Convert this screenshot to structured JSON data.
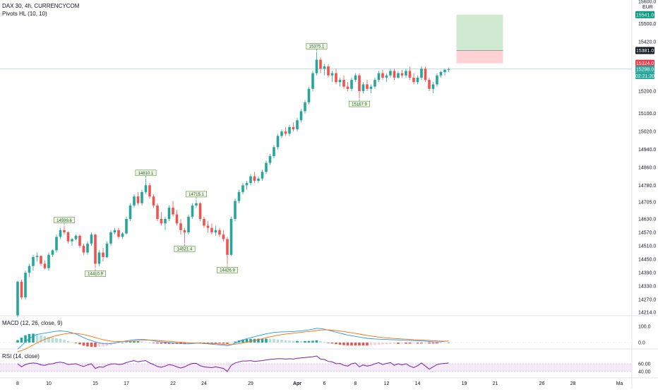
{
  "header": {
    "symbol_line": "DAX 30, 4h, CURRENCYCOM",
    "indicator_line": "Pivots HL (10, 10)"
  },
  "macd": {
    "label": "MACD (12, 26, close, 9)",
    "axis_ticks": [
      "100.0",
      "0.0"
    ]
  },
  "rsi": {
    "label": "RSI (14, close)",
    "axis_ticks": [
      "60.00",
      "40.00"
    ],
    "band": [
      30,
      70
    ]
  },
  "colors": {
    "up": "#26a69a",
    "down": "#ef5350",
    "macd_line": "#2196f3",
    "signal_line": "#ff6d00",
    "rsi_line": "#7b1fa2",
    "rsi_band": "#f3e5f5",
    "target_zone": "#c8e6c9",
    "stop_zone": "#ffcdd2",
    "current_price": "#26a69a",
    "grid": "#f0f3fa"
  },
  "chart_data": {
    "type": "candlestick",
    "price_axis": {
      "currency": "EUR",
      "ticks": [
        15600.0,
        15500.0,
        15420.0,
        15200.0,
        15100.0,
        15020.0,
        14940.0,
        14860.0,
        14780.0,
        14705.0,
        14630.0,
        14570.0,
        14510.0,
        14450.0,
        14390.0,
        14330.0,
        14270.0,
        14214.0
      ],
      "tick_labels": [
        "15600.0",
        "15500.0",
        "15420.0",
        "15200.0",
        "15100.0",
        "15020.0",
        "14940.0",
        "14860.0",
        "14780.0",
        "14705.0",
        "14630.0",
        "14570.0",
        "14510.0",
        "14450.0",
        "14390.0",
        "14330.0",
        "14270.0",
        "14214.0"
      ],
      "price_tags": [
        {
          "label": "15541.0",
          "value": 15541,
          "color": "#089981"
        },
        {
          "label": "15381.0",
          "value": 15381,
          "color": "#131722"
        },
        {
          "label": "15324.0",
          "value": 15324,
          "color": "#f23645"
        },
        {
          "label": "15298.0",
          "value": 15298,
          "color": "#26a69a"
        }
      ],
      "countdown": "02:21:20"
    },
    "time_axis": {
      "labels": [
        "8",
        "10",
        "15",
        "17",
        "22",
        "24",
        "29",
        "Apr",
        "6",
        "8",
        "12",
        "14",
        "19",
        "21",
        "26",
        "28",
        "Ma"
      ],
      "label_index": [
        0,
        8,
        20,
        28,
        40,
        48,
        60,
        72,
        79,
        87,
        95,
        103,
        115,
        123,
        135,
        143,
        155
      ]
    },
    "pivots": [
      {
        "label": "14599.6",
        "index": 12,
        "kind": "high"
      },
      {
        "label": "14410.9",
        "index": 20,
        "kind": "low"
      },
      {
        "label": "14810.1",
        "index": 33,
        "kind": "high"
      },
      {
        "label": "14521.4",
        "index": 43,
        "kind": "low"
      },
      {
        "label": "14715.1",
        "index": 46,
        "kind": "high"
      },
      {
        "label": "14426.9",
        "index": 54,
        "kind": "low"
      },
      {
        "label": "15375.1",
        "index": 77,
        "kind": "high"
      },
      {
        "label": "15167.9",
        "index": 88,
        "kind": "low"
      }
    ],
    "position": {
      "start_index": 113,
      "end_index": 125,
      "entry": 15324,
      "target": 15541,
      "stop": 15381
    },
    "candles": [
      [
        14200,
        14355,
        14190,
        14350
      ],
      [
        14350,
        14360,
        14270,
        14280
      ],
      [
        14280,
        14400,
        14270,
        14390
      ],
      [
        14390,
        14430,
        14370,
        14420
      ],
      [
        14420,
        14470,
        14400,
        14460
      ],
      [
        14460,
        14480,
        14440,
        14465
      ],
      [
        14465,
        14468,
        14420,
        14430
      ],
      [
        14430,
        14445,
        14405,
        14410
      ],
      [
        14410,
        14480,
        14400,
        14470
      ],
      [
        14470,
        14495,
        14460,
        14490
      ],
      [
        14490,
        14560,
        14480,
        14550
      ],
      [
        14550,
        14590,
        14540,
        14580
      ],
      [
        14580,
        14599.6,
        14560,
        14570
      ],
      [
        14570,
        14575,
        14520,
        14530
      ],
      [
        14530,
        14545,
        14510,
        14540
      ],
      [
        14540,
        14560,
        14535,
        14555
      ],
      [
        14555,
        14560,
        14500,
        14510
      ],
      [
        14510,
        14520,
        14470,
        14480
      ],
      [
        14480,
        14530,
        14470,
        14520
      ],
      [
        14520,
        14570,
        14510,
        14560
      ],
      [
        14560,
        14565,
        14410.9,
        14430
      ],
      [
        14430,
        14490,
        14420,
        14480
      ],
      [
        14480,
        14500,
        14440,
        14460
      ],
      [
        14460,
        14530,
        14455,
        14520
      ],
      [
        14520,
        14580,
        14510,
        14570
      ],
      [
        14570,
        14590,
        14560,
        14580
      ],
      [
        14580,
        14590,
        14540,
        14550
      ],
      [
        14550,
        14570,
        14540,
        14565
      ],
      [
        14565,
        14640,
        14560,
        14630
      ],
      [
        14630,
        14700,
        14620,
        14690
      ],
      [
        14690,
        14740,
        14680,
        14730
      ],
      [
        14730,
        14750,
        14690,
        14700
      ],
      [
        14700,
        14760,
        14690,
        14750
      ],
      [
        14750,
        14810.1,
        14740,
        14780
      ],
      [
        14780,
        14790,
        14720,
        14730
      ],
      [
        14730,
        14740,
        14680,
        14690
      ],
      [
        14690,
        14700,
        14620,
        14630
      ],
      [
        14630,
        14660,
        14600,
        14610
      ],
      [
        14610,
        14640,
        14580,
        14630
      ],
      [
        14630,
        14690,
        14620,
        14680
      ],
      [
        14680,
        14710,
        14640,
        14650
      ],
      [
        14650,
        14670,
        14600,
        14610
      ],
      [
        14610,
        14630,
        14560,
        14580
      ],
      [
        14580,
        14590,
        14521.4,
        14570
      ],
      [
        14570,
        14650,
        14560,
        14640
      ],
      [
        14640,
        14700,
        14630,
        14690
      ],
      [
        14690,
        14715.1,
        14680,
        14700
      ],
      [
        14700,
        14705,
        14620,
        14630
      ],
      [
        14630,
        14640,
        14590,
        14600
      ],
      [
        14600,
        14620,
        14570,
        14590
      ],
      [
        14590,
        14610,
        14560,
        14570
      ],
      [
        14570,
        14600,
        14555,
        14580
      ],
      [
        14580,
        14590,
        14550,
        14560
      ],
      [
        14560,
        14580,
        14530,
        14540
      ],
      [
        14540,
        14550,
        14426.9,
        14470
      ],
      [
        14470,
        14640,
        14465,
        14630
      ],
      [
        14630,
        14720,
        14620,
        14710
      ],
      [
        14710,
        14760,
        14700,
        14750
      ],
      [
        14750,
        14790,
        14740,
        14780
      ],
      [
        14780,
        14800,
        14760,
        14790
      ],
      [
        14790,
        14830,
        14780,
        14820
      ],
      [
        14820,
        14840,
        14790,
        14800
      ],
      [
        14800,
        14820,
        14790,
        14810
      ],
      [
        14810,
        14850,
        14800,
        14840
      ],
      [
        14840,
        14890,
        14830,
        14880
      ],
      [
        14880,
        14920,
        14870,
        14910
      ],
      [
        14910,
        14960,
        14900,
        14950
      ],
      [
        14950,
        15010,
        14940,
        15000
      ],
      [
        15000,
        15030,
        14990,
        15020
      ],
      [
        15020,
        15040,
        15000,
        15010
      ],
      [
        15010,
        15050,
        15000,
        15040
      ],
      [
        15040,
        15060,
        15020,
        15030
      ],
      [
        15030,
        15080,
        15020,
        15070
      ],
      [
        15070,
        15120,
        15060,
        15110
      ],
      [
        15110,
        15160,
        15100,
        15150
      ],
      [
        15150,
        15220,
        15140,
        15210
      ],
      [
        15210,
        15290,
        15200,
        15280
      ],
      [
        15280,
        15375.1,
        15270,
        15340
      ],
      [
        15340,
        15350,
        15280,
        15300
      ],
      [
        15300,
        15320,
        15270,
        15310
      ],
      [
        15310,
        15320,
        15260,
        15270
      ],
      [
        15270,
        15290,
        15240,
        15280
      ],
      [
        15280,
        15300,
        15230,
        15240
      ],
      [
        15240,
        15260,
        15220,
        15250
      ],
      [
        15250,
        15270,
        15210,
        15220
      ],
      [
        15220,
        15240,
        15200,
        15210
      ],
      [
        15210,
        15260,
        15200,
        15250
      ],
      [
        15250,
        15280,
        15240,
        15270
      ],
      [
        15270,
        15280,
        15167.9,
        15200
      ],
      [
        15200,
        15240,
        15190,
        15230
      ],
      [
        15230,
        15250,
        15200,
        15210
      ],
      [
        15210,
        15230,
        15190,
        15220
      ],
      [
        15220,
        15260,
        15210,
        15250
      ],
      [
        15250,
        15290,
        15240,
        15280
      ],
      [
        15280,
        15295,
        15250,
        15260
      ],
      [
        15260,
        15280,
        15240,
        15270
      ],
      [
        15270,
        15300,
        15260,
        15290
      ],
      [
        15290,
        15300,
        15250,
        15260
      ],
      [
        15260,
        15290,
        15255,
        15280
      ],
      [
        15280,
        15295,
        15260,
        15270
      ],
      [
        15270,
        15300,
        15260,
        15290
      ],
      [
        15290,
        15310,
        15250,
        15260
      ],
      [
        15260,
        15280,
        15230,
        15240
      ],
      [
        15240,
        15270,
        15230,
        15260
      ],
      [
        15260,
        15310,
        15250,
        15300
      ],
      [
        15300,
        15310,
        15240,
        15250
      ],
      [
        15250,
        15260,
        15200,
        15210
      ],
      [
        15210,
        15240,
        15190,
        15230
      ],
      [
        15230,
        15280,
        15220,
        15270
      ],
      [
        15270,
        15290,
        15260,
        15285
      ],
      [
        15285,
        15300,
        15270,
        15295
      ],
      [
        15295,
        15305,
        15285,
        15298
      ]
    ],
    "macd": [
      [
        -40,
        -55,
        15
      ],
      [
        -20,
        -50,
        30
      ],
      [
        5,
        -40,
        45
      ],
      [
        25,
        -28,
        53
      ],
      [
        40,
        -15,
        55
      ],
      [
        50,
        -2,
        52
      ],
      [
        55,
        10,
        45
      ],
      [
        58,
        20,
        38
      ],
      [
        62,
        28,
        34
      ],
      [
        66,
        36,
        30
      ],
      [
        70,
        43,
        27
      ],
      [
        72,
        49,
        23
      ],
      [
        70,
        53,
        17
      ],
      [
        66,
        56,
        10
      ],
      [
        60,
        57,
        3
      ],
      [
        52,
        56,
        -4
      ],
      [
        42,
        53,
        -11
      ],
      [
        30,
        49,
        -19
      ],
      [
        20,
        44,
        -24
      ],
      [
        12,
        38,
        -26
      ],
      [
        4,
        31,
        -27
      ],
      [
        -2,
        24,
        -26
      ],
      [
        -6,
        18,
        -24
      ],
      [
        -8,
        13,
        -21
      ],
      [
        -6,
        9,
        -15
      ],
      [
        -2,
        7,
        -9
      ],
      [
        2,
        6,
        -4
      ],
      [
        6,
        6,
        0
      ],
      [
        10,
        7,
        3
      ],
      [
        14,
        8,
        6
      ],
      [
        18,
        10,
        8
      ],
      [
        20,
        12,
        8
      ],
      [
        20,
        14,
        6
      ],
      [
        18,
        15,
        3
      ],
      [
        15,
        15,
        0
      ],
      [
        11,
        14,
        -3
      ],
      [
        7,
        13,
        -6
      ],
      [
        4,
        11,
        -7
      ],
      [
        2,
        9,
        -7
      ],
      [
        0,
        8,
        -8
      ],
      [
        -2,
        6,
        -8
      ],
      [
        -4,
        4,
        -8
      ],
      [
        -6,
        2,
        -8
      ],
      [
        -8,
        0,
        -8
      ],
      [
        -8,
        -2,
        -6
      ],
      [
        -6,
        -3,
        -3
      ],
      [
        -4,
        -3,
        -1
      ],
      [
        -4,
        -3,
        -1
      ],
      [
        -6,
        -4,
        -2
      ],
      [
        -8,
        -5,
        -3
      ],
      [
        -10,
        -6,
        -4
      ],
      [
        -12,
        -7,
        -5
      ],
      [
        -14,
        -9,
        -5
      ],
      [
        -16,
        -10,
        -6
      ],
      [
        -20,
        -12,
        -8
      ],
      [
        -14,
        -12,
        -2
      ],
      [
        -4,
        -10,
        6
      ],
      [
        6,
        -7,
        13
      ],
      [
        16,
        -3,
        19
      ],
      [
        24,
        2,
        22
      ],
      [
        30,
        7,
        23
      ],
      [
        36,
        13,
        23
      ],
      [
        42,
        18,
        24
      ],
      [
        48,
        24,
        24
      ],
      [
        54,
        30,
        24
      ],
      [
        58,
        35,
        23
      ],
      [
        62,
        40,
        22
      ],
      [
        64,
        45,
        19
      ],
      [
        66,
        49,
        17
      ],
      [
        66,
        52,
        14
      ],
      [
        67,
        55,
        12
      ],
      [
        68,
        58,
        10
      ],
      [
        70,
        60,
        10
      ],
      [
        72,
        63,
        9
      ],
      [
        75,
        66,
        9
      ],
      [
        78,
        68,
        10
      ],
      [
        82,
        71,
        11
      ],
      [
        88,
        74,
        14
      ],
      [
        86,
        77,
        9
      ],
      [
        82,
        78,
        4
      ],
      [
        76,
        78,
        -2
      ],
      [
        70,
        76,
        -6
      ],
      [
        64,
        74,
        -10
      ],
      [
        58,
        71,
        -13
      ],
      [
        52,
        68,
        -16
      ],
      [
        46,
        64,
        -18
      ],
      [
        42,
        60,
        -18
      ],
      [
        38,
        56,
        -18
      ],
      [
        34,
        52,
        -18
      ],
      [
        30,
        48,
        -18
      ],
      [
        26,
        44,
        -18
      ],
      [
        24,
        40,
        -16
      ],
      [
        22,
        37,
        -15
      ],
      [
        21,
        34,
        -13
      ],
      [
        20,
        31,
        -11
      ],
      [
        19,
        29,
        -10
      ],
      [
        18,
        27,
        -9
      ],
      [
        17,
        25,
        -8
      ],
      [
        16,
        24,
        -8
      ],
      [
        15,
        22,
        -7
      ],
      [
        14,
        21,
        -7
      ],
      [
        13,
        20,
        -7
      ],
      [
        12,
        18,
        -6
      ],
      [
        11,
        17,
        -6
      ],
      [
        10,
        16,
        -6
      ],
      [
        9,
        14,
        -5
      ],
      [
        7,
        13,
        -6
      ],
      [
        5,
        11,
        -6
      ],
      [
        4,
        10,
        -6
      ],
      [
        5,
        9,
        -4
      ],
      [
        8,
        9,
        -1
      ],
      [
        10,
        9,
        1
      ]
    ],
    "rsi": [
      60,
      52,
      58,
      61,
      62,
      61,
      57,
      56,
      59,
      60,
      63,
      64,
      62,
      58,
      59,
      60,
      56,
      53,
      57,
      60,
      48,
      52,
      51,
      56,
      59,
      60,
      58,
      59,
      63,
      66,
      68,
      65,
      67,
      68,
      62,
      58,
      53,
      51,
      54,
      58,
      56,
      52,
      49,
      52,
      57,
      61,
      61,
      55,
      52,
      51,
      50,
      52,
      50,
      48,
      40,
      56,
      62,
      65,
      67,
      67,
      68,
      66,
      67,
      68,
      70,
      71,
      72,
      73,
      73,
      72,
      73,
      72,
      74,
      75,
      76,
      77,
      78,
      80,
      72,
      71,
      66,
      65,
      60,
      61,
      56,
      54,
      60,
      62,
      52,
      57,
      54,
      56,
      60,
      63,
      58,
      61,
      63,
      56,
      60,
      57,
      60,
      54,
      50,
      55,
      62,
      54,
      46,
      52,
      58,
      60,
      61,
      62
    ]
  }
}
